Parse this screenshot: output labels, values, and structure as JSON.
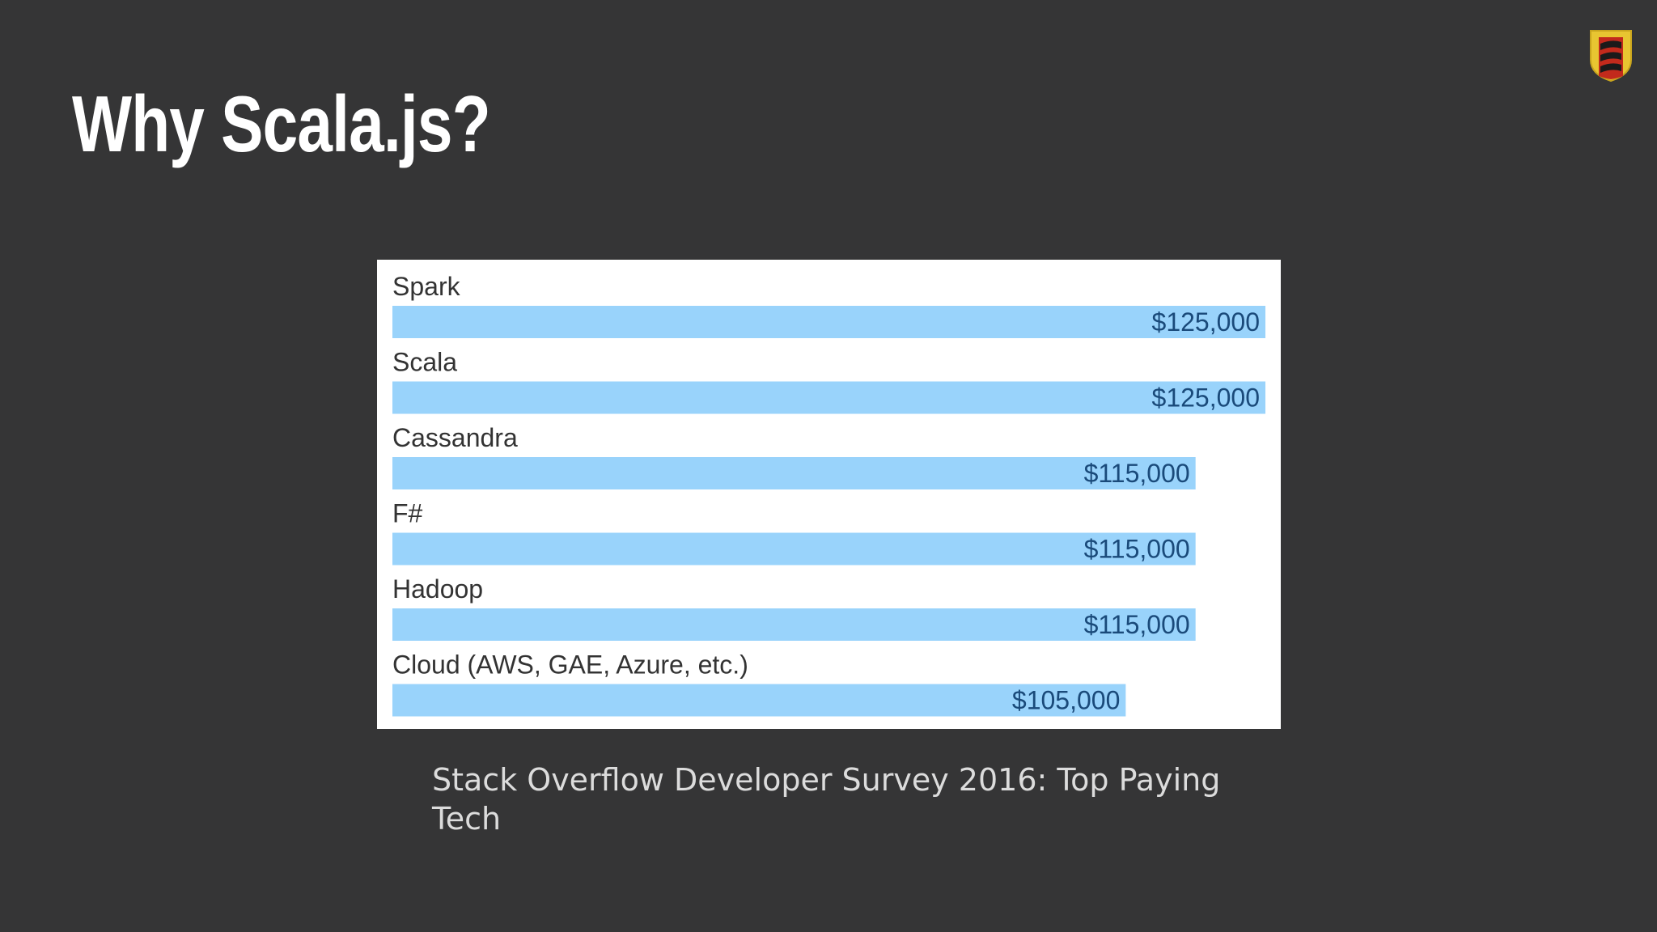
{
  "slide": {
    "title": "Why Scala.js?",
    "caption": "Stack Overflow Developer Survey 2016: Top Paying Tech",
    "logo_icon": "scala-logo-icon"
  },
  "colors": {
    "background": "#353536",
    "bar": "#99d3fb",
    "bar_label": "#1a4a7a",
    "category_label": "#333333"
  },
  "chart_data": {
    "type": "bar",
    "orientation": "horizontal",
    "categories": [
      "Spark",
      "Scala",
      "Cassandra",
      "F#",
      "Hadoop",
      "Cloud (AWS, GAE, Azure, etc.)"
    ],
    "values": [
      125000,
      125000,
      115000,
      115000,
      115000,
      105000
    ],
    "value_labels": [
      "$125,000",
      "$125,000",
      "$115,000",
      "$115,000",
      "$115,000",
      "$105,000"
    ],
    "xlim": [
      0,
      125000
    ],
    "grid": false,
    "legend": "none"
  }
}
